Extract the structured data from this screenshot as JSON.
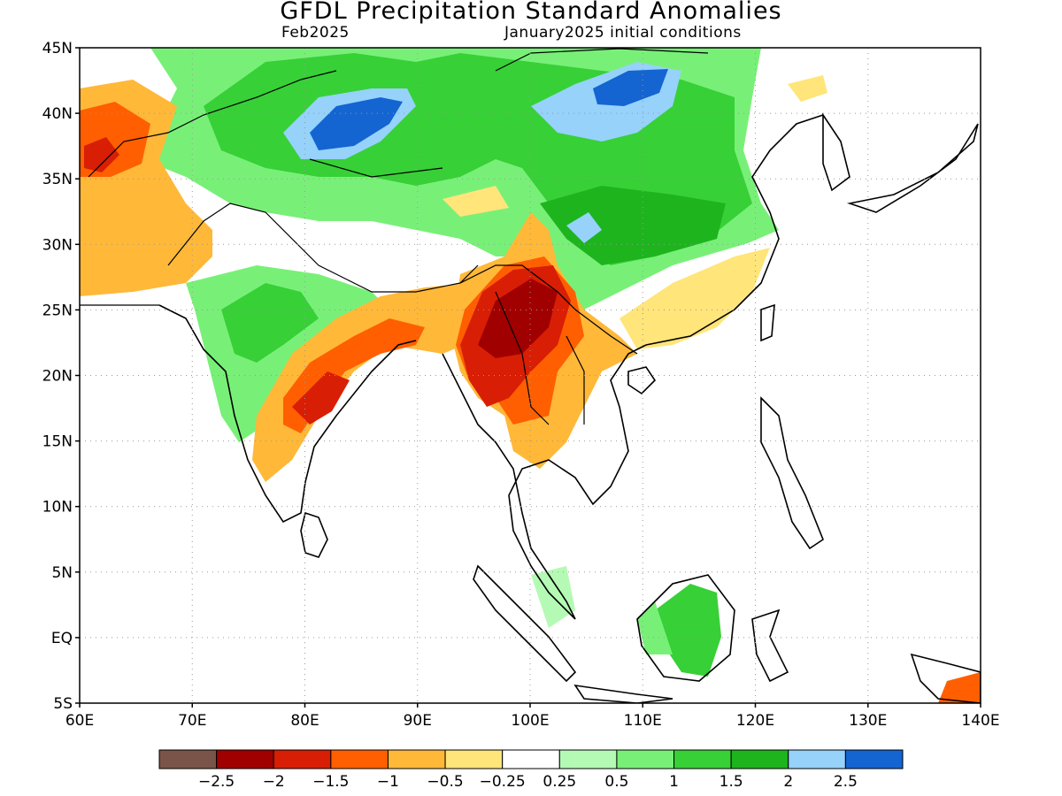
{
  "title": "GFDL Precipitation Standard Anomalies",
  "subtitle_left": "Feb2025",
  "subtitle_right": "January2025 initial conditions",
  "map": {
    "lon_range": [
      60,
      140
    ],
    "lat_range": [
      -5,
      45
    ],
    "lat_ticks": [
      {
        "value": 45,
        "label": "45N"
      },
      {
        "value": 40,
        "label": "40N"
      },
      {
        "value": 35,
        "label": "35N"
      },
      {
        "value": 30,
        "label": "30N"
      },
      {
        "value": 25,
        "label": "25N"
      },
      {
        "value": 20,
        "label": "20N"
      },
      {
        "value": 15,
        "label": "15N"
      },
      {
        "value": 10,
        "label": "10N"
      },
      {
        "value": 5,
        "label": "5N"
      },
      {
        "value": 0,
        "label": "EQ"
      },
      {
        "value": -5,
        "label": "5S"
      }
    ],
    "lon_ticks": [
      {
        "value": 60,
        "label": "60E"
      },
      {
        "value": 70,
        "label": "70E"
      },
      {
        "value": 80,
        "label": "80E"
      },
      {
        "value": 90,
        "label": "90E"
      },
      {
        "value": 100,
        "label": "100E"
      },
      {
        "value": 110,
        "label": "110E"
      },
      {
        "value": 120,
        "label": "120E"
      },
      {
        "value": 130,
        "label": "130E"
      },
      {
        "value": 140,
        "label": "140E"
      }
    ],
    "grid": "dotted"
  },
  "colorbar": {
    "colors": [
      "#7a5448",
      "#a00000",
      "#d81e05",
      "#ff5f00",
      "#ffb838",
      "#ffe57a",
      "#ffffff",
      "#b4fab4",
      "#78f078",
      "#37d037",
      "#1eb41e",
      "#96d2fa",
      "#1464d2"
    ],
    "labels": [
      "-2.5",
      "-2",
      "-1.5",
      "-1",
      "-0.5",
      "-0.25",
      "0.25",
      "0.5",
      "1",
      "1.5",
      "2",
      "2.5"
    ]
  }
}
